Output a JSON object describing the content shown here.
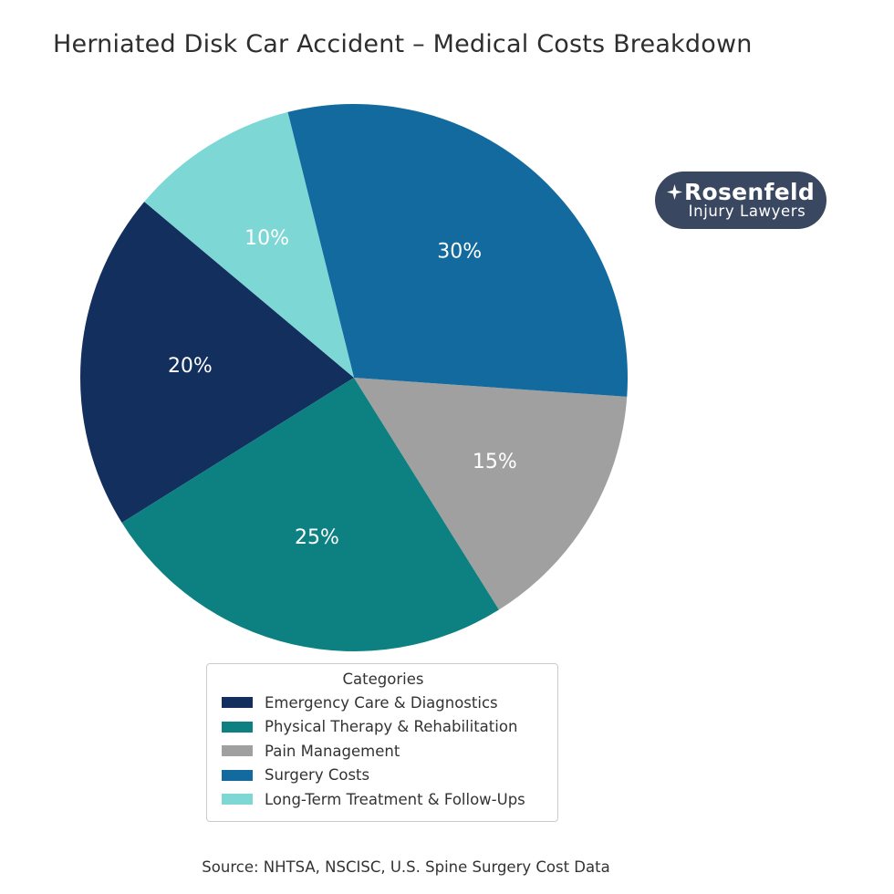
{
  "chart_data": {
    "type": "pie",
    "title": "Herniated Disk Car Accident – Medical Costs Breakdown",
    "categories": [
      "Emergency Care & Diagnostics",
      "Physical Therapy & Rehabilitation",
      "Pain Management",
      "Surgery Costs",
      "Long-Term Treatment & Follow-Ups"
    ],
    "values": [
      20,
      25,
      15,
      30,
      10
    ],
    "percent_labels": [
      "20%",
      "25%",
      "15%",
      "30%",
      "10%"
    ],
    "colors": [
      "#122f5d",
      "#0d8181",
      "#a0a0a0",
      "#136a9e",
      "#7cd7d5"
    ],
    "start_angle_deg": 140,
    "counterclockwise": true,
    "label_radius_fraction": 0.6,
    "label_color": "#ffffff",
    "legend": {
      "title": "Categories",
      "position": "bottom"
    },
    "background": "#ffffff"
  },
  "logo": {
    "line1": "Rosenfeld",
    "line2": "Injury Lawyers",
    "bg_color": "#3a4760",
    "text_color": "#ffffff",
    "icon": "four-point-star"
  },
  "source": "Source: NHTSA, NSCISC, U.S. Spine Surgery Cost Data"
}
